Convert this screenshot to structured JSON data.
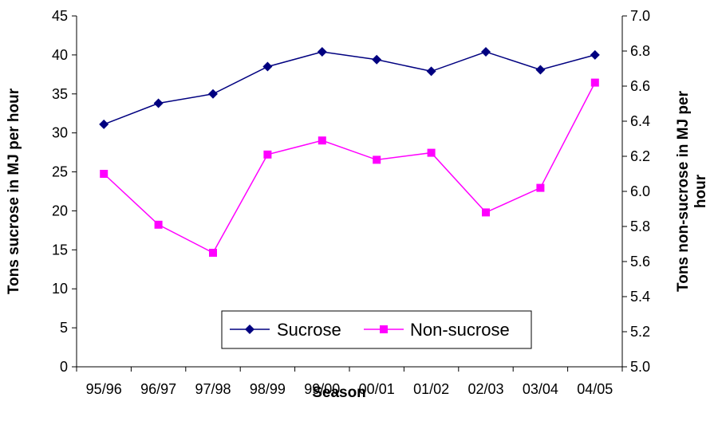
{
  "chart_data": {
    "type": "line",
    "x_axis": {
      "label": "Season",
      "categories": [
        "95/96",
        "96/97",
        "97/98",
        "98/99",
        "99/00",
        "00/01",
        "01/02",
        "02/03",
        "03/04",
        "04/05"
      ]
    },
    "y_axis_left": {
      "label": "Tons sucrose in MJ per hour",
      "ylim": [
        0,
        45
      ],
      "ticks": [
        "0",
        "5",
        "10",
        "15",
        "20",
        "25",
        "30",
        "35",
        "40",
        "45"
      ]
    },
    "y_axis_right": {
      "label_line1": "Tons non-sucrose in MJ per",
      "label_line2": "hour",
      "ylim": [
        5.0,
        7.0
      ],
      "ticks": [
        "5.0",
        "5.2",
        "5.4",
        "5.6",
        "5.8",
        "6.0",
        "6.2",
        "6.4",
        "6.6",
        "6.8",
        "7.0"
      ]
    },
    "series": [
      {
        "name": "Sucrose",
        "axis": "left",
        "color": "#000080",
        "marker": "diamond",
        "values": [
          31.1,
          33.8,
          35.0,
          38.5,
          40.4,
          39.4,
          37.9,
          40.4,
          38.1,
          40.0
        ]
      },
      {
        "name": "Non-sucrose",
        "axis": "right",
        "color": "#FF00FF",
        "marker": "square",
        "values": [
          6.1,
          5.81,
          5.65,
          6.21,
          6.29,
          6.18,
          6.22,
          5.88,
          6.02,
          6.62
        ]
      }
    ],
    "legend_position": "bottom-center-inside",
    "grid": false
  }
}
